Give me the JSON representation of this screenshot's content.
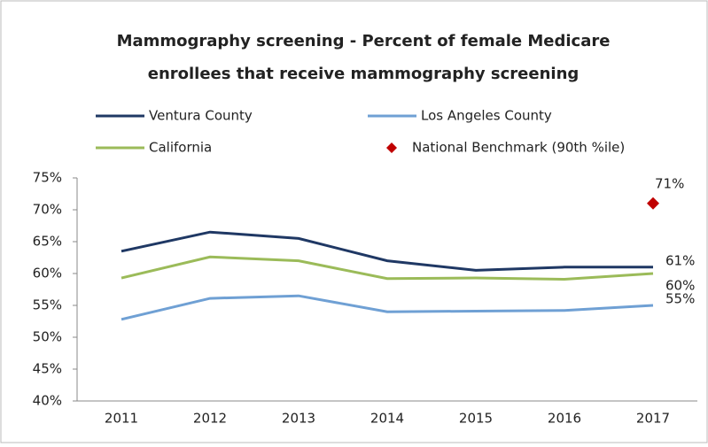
{
  "chart_data": {
    "type": "line",
    "title": [
      "Mammography screening - Percent of female Medicare",
      "enrollees that receive mammography screening"
    ],
    "categories": [
      "2011",
      "2012",
      "2013",
      "2014",
      "2015",
      "2016",
      "2017"
    ],
    "series": [
      {
        "name": "Ventura County",
        "color": "#1f3864",
        "values": [
          63.5,
          66.5,
          65.5,
          62,
          60.5,
          61,
          61
        ],
        "value_labels": [
          null,
          null,
          null,
          null,
          null,
          null,
          "61%"
        ]
      },
      {
        "name": "Los Angeles County",
        "color": "#6fa0d4",
        "values": [
          52.8,
          56.1,
          56.5,
          54,
          54.1,
          54.2,
          55
        ],
        "value_labels": [
          null,
          null,
          null,
          null,
          null,
          null,
          "55%"
        ]
      },
      {
        "name": "California",
        "color": "#9bbb59",
        "values": [
          59.3,
          62.6,
          62,
          59.2,
          59.3,
          59.1,
          60
        ],
        "value_labels": [
          null,
          null,
          null,
          null,
          null,
          null,
          "60%"
        ]
      },
      {
        "name": "National Benchmark (90th %ile)",
        "color": "#c00000",
        "marker": "diamond",
        "values": [
          null,
          null,
          null,
          null,
          null,
          null,
          71
        ],
        "value_labels": [
          null,
          null,
          null,
          null,
          null,
          null,
          "71%"
        ]
      }
    ],
    "ylim": [
      40,
      75
    ],
    "yticks": [
      {
        "value": 40,
        "label": "40%"
      },
      {
        "value": 45,
        "label": "45%"
      },
      {
        "value": 50,
        "label": "50%"
      },
      {
        "value": 55,
        "label": "55%"
      },
      {
        "value": 60,
        "label": "60%"
      },
      {
        "value": 65,
        "label": "65%"
      },
      {
        "value": 70,
        "label": "70%"
      },
      {
        "value": 75,
        "label": "75%"
      }
    ],
    "grid": false,
    "legend": "top"
  }
}
